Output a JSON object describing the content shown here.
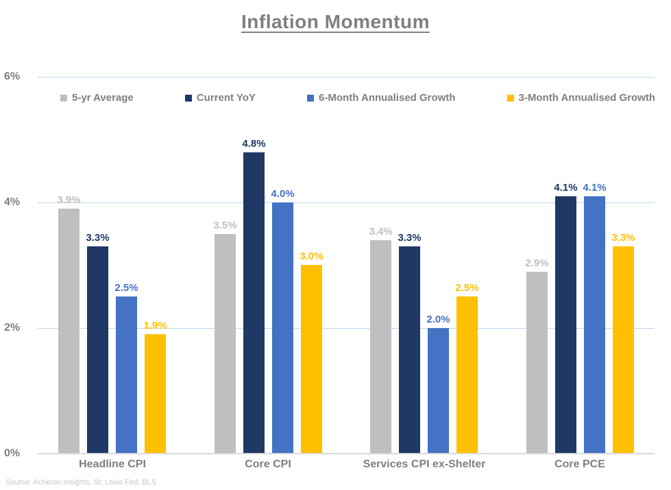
{
  "source": "Source: Acheron Insights, St. Louis Fed, BLS",
  "colors": {
    "title_text": "#7f7f7f",
    "axis_text": "#7f7f7f",
    "gridline": "#bdd7ee",
    "baseline": "#d9d9d9",
    "source_text": "#c6c6c6",
    "series_gray": "#bfbfbf",
    "series_navy": "#1f3864",
    "series_blue": "#4472c4",
    "series_yellow": "#ffc000"
  },
  "chart_data": {
    "type": "bar",
    "title": "Inflation Momentum",
    "categories": [
      "Headline CPI",
      "Core CPI",
      "Services CPI ex-Shelter",
      "Core PCE"
    ],
    "series": [
      {
        "name": "5-yr Average",
        "color": "#bfbfbf",
        "values": [
          3.9,
          3.5,
          3.4,
          2.9
        ],
        "labels": [
          "3.9%",
          "3.5%",
          "3.4%",
          "2.9%"
        ]
      },
      {
        "name": "Current YoY",
        "color": "#1f3864",
        "values": [
          3.3,
          4.8,
          3.3,
          4.1
        ],
        "labels": [
          "3.3%",
          "4.8%",
          "3.3%",
          "4.1%"
        ]
      },
      {
        "name": "6-Month Annualised Growth",
        "color": "#4472c4",
        "values": [
          2.5,
          4.0,
          2.0,
          4.1
        ],
        "labels": [
          "2.5%",
          "4.0%",
          "2.0%",
          "4.1%"
        ]
      },
      {
        "name": "3-Month Annualised Growth",
        "color": "#ffc000",
        "values": [
          1.9,
          3.0,
          2.5,
          3.3
        ],
        "labels": [
          "1.9%",
          "3.0%",
          "2.5%",
          "3.3%"
        ]
      }
    ],
    "y_axis": {
      "ticks": [
        "6%",
        "4%",
        "2%",
        "0%"
      ],
      "tick_values": [
        6,
        4,
        2,
        0
      ],
      "min": 0,
      "max": 6
    },
    "xlabel": "",
    "ylabel": "",
    "grid": true,
    "legend_position": "top",
    "data_labels": "match-series-color"
  }
}
